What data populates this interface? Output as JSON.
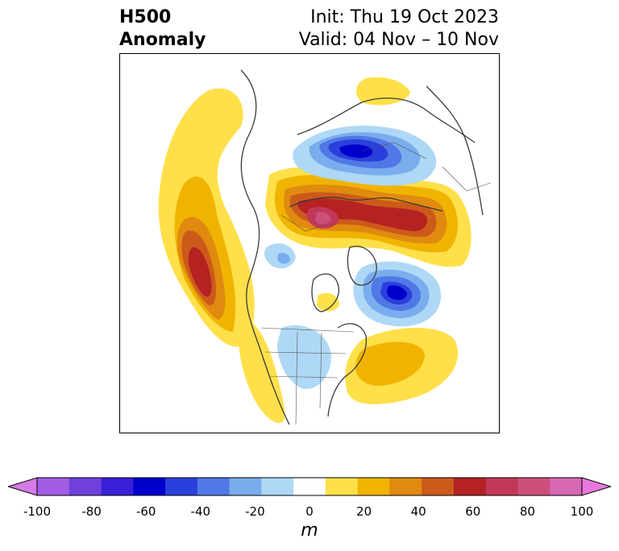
{
  "header": {
    "title_line1": "H500",
    "title_line2": "Anomaly",
    "init_text": "Init: Thu 19 Oct 2023",
    "valid_text": "Valid: 04 Nov – 10 Nov"
  },
  "colorbar": {
    "unit": "m",
    "tick_labels": [
      "-100",
      "-80",
      "-60",
      "-40",
      "-20",
      "0",
      "20",
      "40",
      "60",
      "80",
      "100"
    ],
    "colors": [
      "#d67ae6",
      "#a35de3",
      "#7040dd",
      "#3a20d6",
      "#0000cc",
      "#2a3fdc",
      "#5078e6",
      "#7aadee",
      "#aed8f6",
      "#ffffff",
      "#ffe04a",
      "#f0b400",
      "#e08a10",
      "#cc5a1a",
      "#b52222",
      "#c23858",
      "#cc4f7c",
      "#d768b4",
      "#e878dc"
    ]
  }
}
